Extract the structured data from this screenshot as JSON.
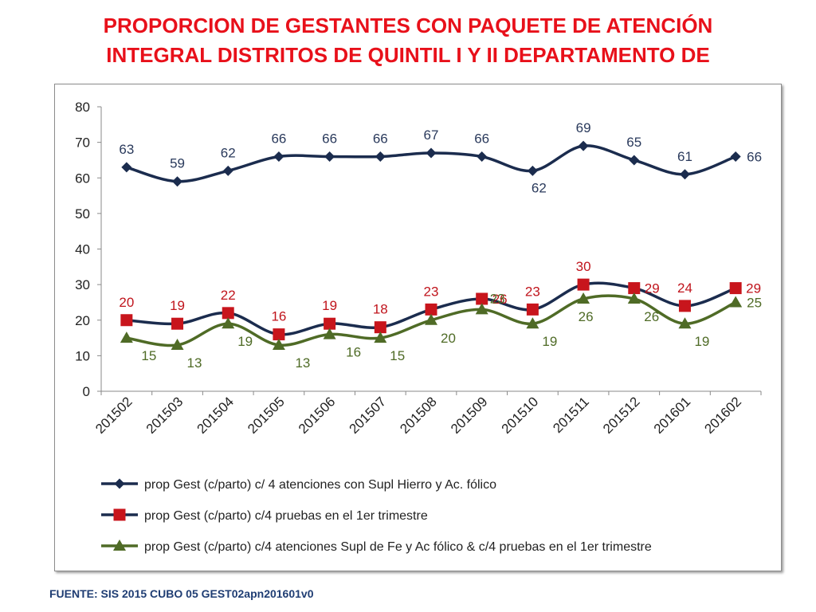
{
  "title_line1": "PROPORCION DE GESTANTES CON PAQUETE DE ATENCIÓN",
  "title_line2": "INTEGRAL  DISTRITOS DE QUINTIL I Y II DEPARTAMENTO DE",
  "source": "FUENTE: SIS 2015 CUBO 05 GEST02apn201601v0",
  "chart_data": {
    "type": "line",
    "title": "PROPORCION DE GESTANTES CON PAQUETE DE ATENCIÓN INTEGRAL  DISTRITOS DE QUINTIL I Y II DEPARTAMENTO DE",
    "xlabel": "",
    "ylabel": "",
    "ylim": [
      0,
      80
    ],
    "yticks": [
      0,
      10,
      20,
      30,
      40,
      50,
      60,
      70,
      80
    ],
    "grid": false,
    "legend_position": "bottom",
    "categories": [
      "201502",
      "201503",
      "201504",
      "201505",
      "201506",
      "201507",
      "201508",
      "201509",
      "201510",
      "201511",
      "201512",
      "201601",
      "201602"
    ],
    "series": [
      {
        "name": "prop Gest (c/parto) c/ 4 atenciones con Supl Hierro y Ac. fólico",
        "values": [
          63,
          59,
          62,
          66,
          66,
          66,
          67,
          66,
          62,
          69,
          65,
          61,
          66
        ],
        "color": "#1b2c4e",
        "marker_color": "#1b2c4e",
        "label_color": "#2a3a5c",
        "marker": "diamond",
        "label_pos": [
          "above",
          "above",
          "above",
          "above",
          "above",
          "above",
          "above",
          "above",
          "below",
          "above",
          "above",
          "above",
          "right"
        ]
      },
      {
        "name": "prop Gest (c/parto) c/4 pruebas en el 1er trimestre",
        "values": [
          20,
          19,
          22,
          16,
          19,
          18,
          23,
          26,
          23,
          30,
          29,
          24,
          29
        ],
        "color": "#1b2c4e",
        "marker_color": "#c8151c",
        "label_color": "#c0141c",
        "marker": "square",
        "label_pos": [
          "above",
          "above",
          "above",
          "above",
          "above",
          "above",
          "above",
          "right",
          "above",
          "above",
          "right",
          "above",
          "right"
        ]
      },
      {
        "name": "prop Gest (c/parto) c/4 atenciones Supl de Fe y Ac fólico & c/4 pruebas en el 1er trimestre",
        "values": [
          15,
          13,
          19,
          13,
          16,
          15,
          20,
          23,
          19,
          26,
          26,
          19,
          25
        ],
        "color": "#4f6b26",
        "marker_color": "#4f6b26",
        "label_color": "#4f6b26",
        "marker": "triangle",
        "label_pos": [
          "below",
          "right",
          "right",
          "below",
          "below",
          "right",
          "right",
          "right",
          "right",
          "below",
          "below",
          "right",
          "right"
        ]
      }
    ]
  }
}
